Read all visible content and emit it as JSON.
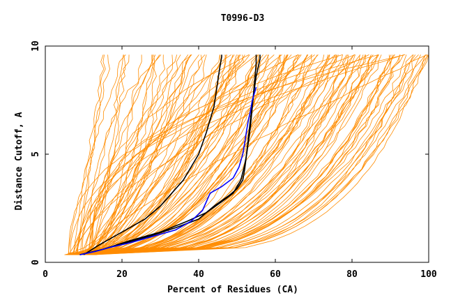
{
  "chart_data": {
    "type": "line",
    "title": "T0996-D3",
    "xlabel": "Percent of Residues (CA)",
    "ylabel": "Distance Cutoff, A",
    "xlim": [
      0,
      100
    ],
    "ylim": [
      0,
      10
    ],
    "xticks": [
      0,
      20,
      40,
      60,
      80,
      100
    ],
    "yticks": [
      0,
      5,
      10
    ],
    "grid": false,
    "legend": "none",
    "colors": {
      "background_models": "#ff8c00",
      "highlight_black": "#000000",
      "highlight_blue": "#0000ff"
    },
    "series": [
      {
        "color": "#000000",
        "x": [
          10,
          14,
          18,
          22,
          26,
          30,
          33,
          36,
          38,
          40,
          41,
          42,
          43,
          44,
          44.5,
          45,
          45.5,
          46,
          46
        ],
        "y": [
          0.35,
          0.8,
          1.2,
          1.6,
          2.0,
          2.6,
          3.2,
          3.8,
          4.4,
          5.0,
          5.5,
          6.0,
          6.6,
          7.2,
          7.8,
          8.4,
          9.0,
          9.5,
          9.6
        ]
      },
      {
        "color": "#000000",
        "x": [
          9,
          15,
          22,
          30,
          37,
          42,
          46,
          49,
          51,
          52,
          52.5,
          53,
          53.5,
          54,
          54.5,
          55,
          55
        ],
        "y": [
          0.35,
          0.6,
          1.0,
          1.4,
          1.9,
          2.3,
          2.8,
          3.2,
          3.8,
          4.5,
          5.0,
          5.6,
          6.3,
          7.2,
          8.2,
          9.2,
          9.6
        ]
      },
      {
        "color": "#000000",
        "x": [
          9,
          14,
          20,
          27,
          34,
          40,
          44,
          48,
          50,
          51.5,
          52,
          52.5,
          53,
          53.5,
          54,
          54.5,
          55,
          56,
          56
        ],
        "y": [
          0.35,
          0.55,
          0.85,
          1.2,
          1.6,
          2.0,
          2.6,
          3.1,
          3.4,
          3.8,
          4.3,
          5.0,
          5.8,
          6.6,
          7.3,
          8.0,
          8.6,
          9.4,
          9.6
        ]
      },
      {
        "color": "#0000ff",
        "x": [
          9,
          13,
          17,
          22,
          28,
          34,
          38,
          41,
          43,
          46,
          49,
          50.5,
          51.5,
          52,
          52.5,
          53,
          53.5,
          54,
          54.5,
          55
        ],
        "y": [
          0.35,
          0.5,
          0.7,
          0.9,
          1.2,
          1.5,
          1.9,
          2.4,
          3.2,
          3.5,
          3.9,
          4.4,
          5.0,
          5.5,
          6.1,
          6.6,
          7.0,
          7.5,
          7.8,
          8.1
        ]
      }
    ]
  }
}
